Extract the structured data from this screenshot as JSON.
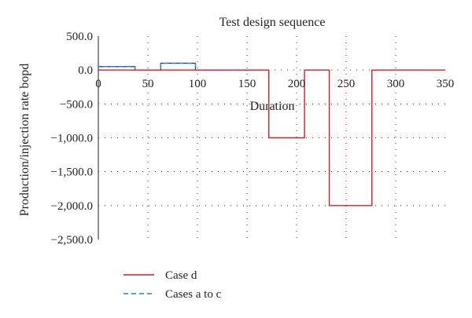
{
  "chart_data": {
    "type": "line",
    "title": "Test design sequence",
    "xlabel": "Duration",
    "ylabel": "Production/injection rate bopd",
    "xlim": [
      0,
      350
    ],
    "ylim": [
      -2500,
      500
    ],
    "x_ticks": [
      0,
      50,
      100,
      150,
      200,
      250,
      300,
      350
    ],
    "x_tick_labels": [
      "0",
      "50",
      "100",
      "150",
      "200",
      "250",
      "300",
      "350"
    ],
    "y_ticks": [
      500,
      0,
      -500,
      -1000,
      -1500,
      -2000,
      -2500
    ],
    "y_tick_labels": [
      "500.0",
      "0.0",
      "−500.0",
      "−1,000.0",
      "−1,500.0",
      "−2,000.0",
      "−2,500.0"
    ],
    "grid": "dotted",
    "legend_position": "bottom-left",
    "series": [
      {
        "name": "Case d",
        "color": "#c8202a",
        "style": "solid",
        "x": [
          0,
          37,
          37,
          63,
          63,
          98,
          98,
          172,
          172,
          208,
          208,
          233,
          233,
          276,
          276,
          350
        ],
        "y": [
          0,
          0,
          0,
          0,
          0,
          0,
          0,
          0,
          -1000,
          -1000,
          0,
          0,
          -2000,
          -2000,
          0,
          0
        ]
      },
      {
        "name": "Cases a to c",
        "color": "#2a7fc7",
        "style": "dashed",
        "x": [
          0,
          0,
          37,
          37,
          63,
          63,
          98,
          98,
          172
        ],
        "y": [
          0,
          50,
          50,
          0,
          0,
          100,
          100,
          0,
          0
        ]
      }
    ],
    "overlay_blocks": [
      {
        "x": [
          0,
          37
        ],
        "y": 50,
        "color": "#1a2f6b"
      },
      {
        "x": [
          63,
          98
        ],
        "y": 100,
        "color": "#1a2f6b"
      }
    ]
  }
}
